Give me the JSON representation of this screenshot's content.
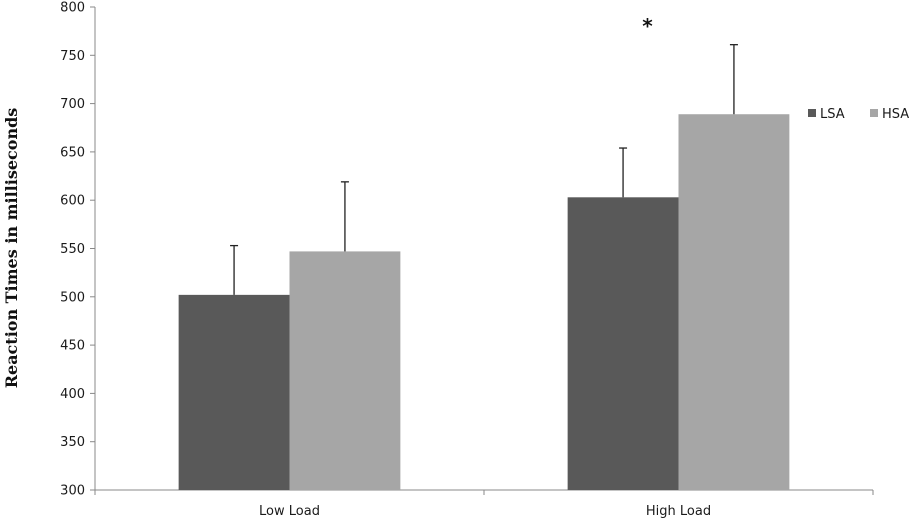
{
  "chart_data": {
    "type": "bar",
    "title": "",
    "xlabel": "",
    "ylabel": "Reaction Times in milliseconds",
    "categories": [
      "Low Load",
      "High Load"
    ],
    "series": [
      {
        "name": "LSA",
        "values": [
          502,
          603
        ],
        "error": [
          51,
          51
        ],
        "color": "#595959"
      },
      {
        "name": "HSA",
        "values": [
          547,
          689
        ],
        "error": [
          72,
          72
        ],
        "color": "#a6a6a6"
      }
    ],
    "ylim": [
      300,
      800
    ],
    "yticks": [
      300,
      350,
      400,
      450,
      500,
      550,
      600,
      650,
      700,
      750,
      800
    ],
    "grid": false,
    "legend_position": "right",
    "annotations": [
      {
        "text": "*",
        "category": "High Load"
      }
    ]
  }
}
